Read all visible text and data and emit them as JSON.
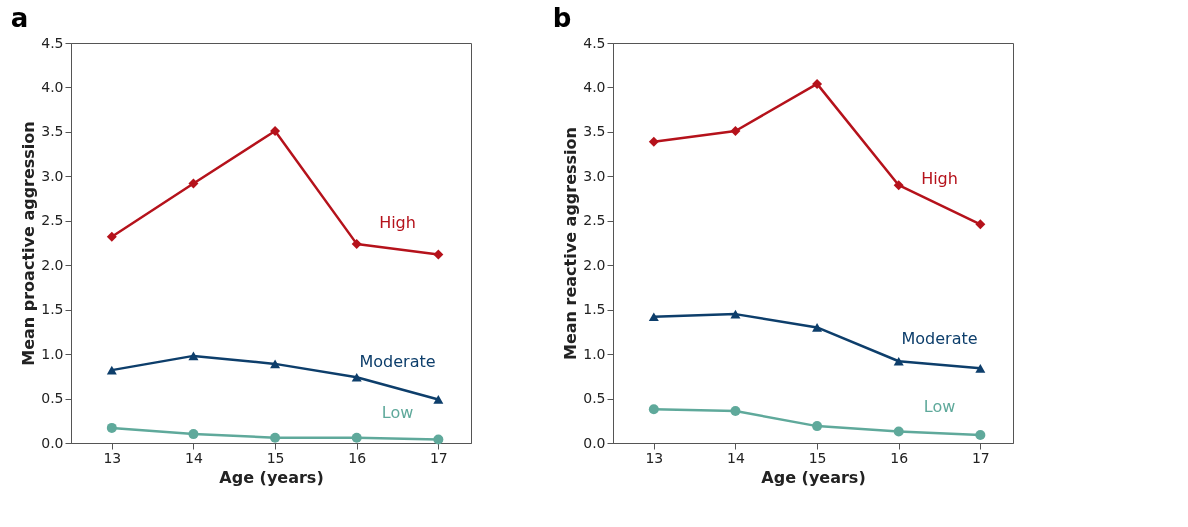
{
  "chart_data": [
    {
      "type": "line",
      "title": "a",
      "xlabel": "Age (years)",
      "ylabel": "Mean proactive aggression",
      "x": [
        13,
        14,
        15,
        16,
        17
      ],
      "xlim": [
        12.5,
        17.4
      ],
      "xticks": [
        13,
        14,
        15,
        16,
        17
      ],
      "ylim": [
        0,
        4.5
      ],
      "yticks": [
        {
          "value": 0,
          "label": "0.0"
        },
        0.5,
        {
          "value": 1,
          "label": "1.0"
        },
        1.5,
        {
          "value": 2,
          "label": "2.0"
        },
        2.5,
        {
          "value": 3,
          "label": "3.0"
        },
        3.5,
        {
          "value": 4,
          "label": "4.0"
        },
        4.5
      ],
      "series": [
        {
          "name": "High",
          "color": "#b5121b",
          "marker": "diamond",
          "values": [
            2.32,
            2.92,
            3.51,
            2.24,
            2.12
          ]
        },
        {
          "name": "Moderate",
          "color": "#0d3e6b",
          "marker": "triangle",
          "values": [
            0.82,
            0.98,
            0.89,
            0.74,
            0.49
          ]
        },
        {
          "name": "Low",
          "color": "#5fa99b",
          "marker": "circle",
          "values": [
            0.17,
            0.1,
            0.06,
            0.06,
            0.04
          ]
        }
      ]
    },
    {
      "type": "line",
      "title": "b",
      "xlabel": "Age (years)",
      "ylabel": "Mean reactive aggression",
      "x": [
        13,
        14,
        15,
        16,
        17
      ],
      "xlim": [
        12.5,
        17.4
      ],
      "xticks": [
        13,
        14,
        15,
        16,
        17
      ],
      "ylim": [
        0,
        4.5
      ],
      "yticks": [
        {
          "value": 0,
          "label": "0.0"
        },
        0.5,
        {
          "value": 1,
          "label": "1.0"
        },
        1.5,
        {
          "value": 2,
          "label": "2.0"
        },
        2.5,
        {
          "value": 3,
          "label": "3.0"
        },
        3.5,
        {
          "value": 4,
          "label": "4.0"
        },
        4.5
      ],
      "series": [
        {
          "name": "High",
          "color": "#b5121b",
          "marker": "diamond",
          "values": [
            3.39,
            3.51,
            4.04,
            2.9,
            2.46
          ]
        },
        {
          "name": "Moderate",
          "color": "#0d3e6b",
          "marker": "triangle",
          "values": [
            1.42,
            1.45,
            1.3,
            0.92,
            0.84
          ]
        },
        {
          "name": "Low",
          "color": "#5fa99b",
          "marker": "circle",
          "values": [
            0.38,
            0.36,
            0.19,
            0.13,
            0.09
          ]
        }
      ]
    }
  ]
}
